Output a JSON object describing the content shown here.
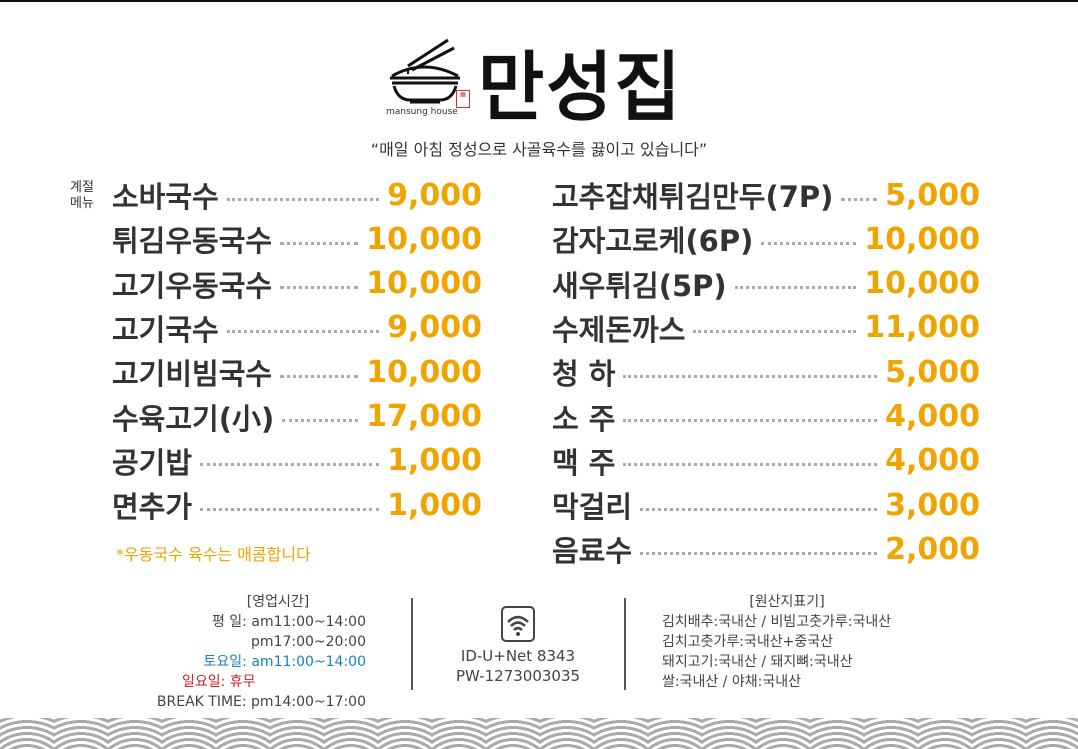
{
  "brand": {
    "name": "만성집",
    "subtitle": "mansung house",
    "seal": "만성"
  },
  "slogan": "“매일 아침 정성으로 사골육수를 끓이고 있습니다”",
  "season_label": [
    "계절",
    "메뉴"
  ],
  "left_menu": [
    {
      "name": "소바국수",
      "price": "9,000"
    },
    {
      "name": "튀김우동국수",
      "price": "10,000"
    },
    {
      "name": "고기우동국수",
      "price": "10,000"
    },
    {
      "name": "고기국수",
      "price": "9,000"
    },
    {
      "name": "고기비빔국수",
      "price": "10,000"
    },
    {
      "name": "수육고기(小)",
      "price": "17,000"
    },
    {
      "name": "공기밥",
      "price": "1,000"
    },
    {
      "name": "면추가",
      "price": "1,000"
    }
  ],
  "note": "*우동국수 육수는 매콤합니다",
  "right_menu": [
    {
      "name": "고추잡채튀김만두(7P)",
      "price": "5,000"
    },
    {
      "name": "감자고로케(6P)",
      "price": "10,000"
    },
    {
      "name": "새우튀김(5P)",
      "price": "10,000"
    },
    {
      "name": "수제돈까스",
      "price": "11,000"
    },
    {
      "name": "청  하",
      "price": "5,000"
    },
    {
      "name": "소  주",
      "price": "4,000"
    },
    {
      "name": "맥  주",
      "price": "4,000"
    },
    {
      "name": "막걸리",
      "price": "3,000"
    },
    {
      "name": "음료수",
      "price": "2,000"
    }
  ],
  "hours": {
    "title": "[영업시간]",
    "weekday_label": "평   일:",
    "weekday_1": "am11:00~14:00",
    "weekday_2": "pm17:00~20:00",
    "saturday": "토요일: am11:00~14:00",
    "sunday": "일요일: 휴무",
    "break": "BREAK TIME: pm14:00~17:00"
  },
  "wifi": {
    "icon": "wifi-icon",
    "id": "ID-U+Net 8343",
    "pw": "PW-1273003035"
  },
  "origin": {
    "title": "[원산지표기]",
    "lines": [
      "김치배추:국내산 / 비빔고춧가루:국내산",
      "김치고춧가루:국내산+중국산",
      "돼지고기:국내산 / 돼지뼈:국내산",
      "쌀:국내산 / 야채:국내산"
    ]
  },
  "colors": {
    "price": "#f0a400",
    "saturday": "#1a7fc1",
    "sunday": "#d0202a"
  }
}
